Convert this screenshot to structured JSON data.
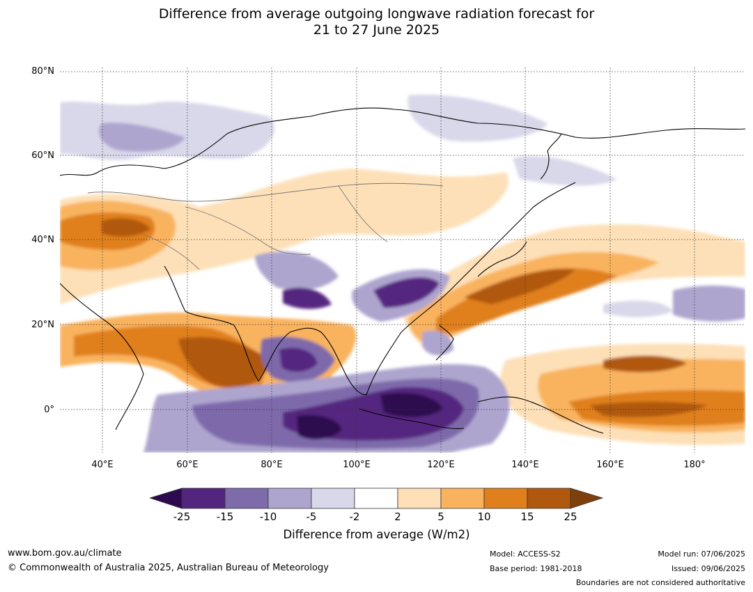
{
  "title_line1": "Difference from average outgoing longwave radiation forecast for",
  "title_line2": "21 to 27 June 2025",
  "map": {
    "lat_labels": [
      {
        "label": "80°N",
        "lat": 80
      },
      {
        "label": "60°N",
        "lat": 60
      },
      {
        "label": "40°N",
        "lat": 40
      },
      {
        "label": "20°N",
        "lat": 20
      },
      {
        "label": "0°",
        "lat": 0
      }
    ],
    "lon_labels": [
      {
        "label": "40°E",
        "lon": 40
      },
      {
        "label": "60°E",
        "lon": 60
      },
      {
        "label": "80°E",
        "lon": 80
      },
      {
        "label": "100°E",
        "lon": 100
      },
      {
        "label": "120°E",
        "lon": 120
      },
      {
        "label": "140°E",
        "lon": 140
      },
      {
        "label": "160°E",
        "lon": 160
      },
      {
        "label": "180°",
        "lon": 180
      }
    ],
    "lon_range": [
      30,
      192
    ],
    "lat_range": [
      -11,
      81
    ],
    "gridlines": "dotted"
  },
  "colorbar": {
    "levels": [
      "-25",
      "-15",
      "-10",
      "-5",
      "-2",
      "2",
      "5",
      "10",
      "15",
      "25"
    ],
    "colors": [
      "#2d0a4f",
      "#54257f",
      "#7e6bab",
      "#aea5cf",
      "#d9d8ea",
      "#ffffff",
      "#fde0b7",
      "#f9b35f",
      "#e0801c",
      "#b0580e",
      "#7e3f0a"
    ],
    "label": "Difference from average (W/m2)"
  },
  "footer": {
    "website": "www.bom.gov.au/climate",
    "copyright": "© Commonwealth of Australia 2025, Australian Bureau of Meteorology",
    "model": "Model: ACCESS-S2",
    "base_period": "Base period: 1981-2018",
    "model_run": "Model run: 07/06/2025",
    "issued": "Issued: 09/06/2025",
    "boundaries_note": "Boundaries are not considered authoritative"
  }
}
